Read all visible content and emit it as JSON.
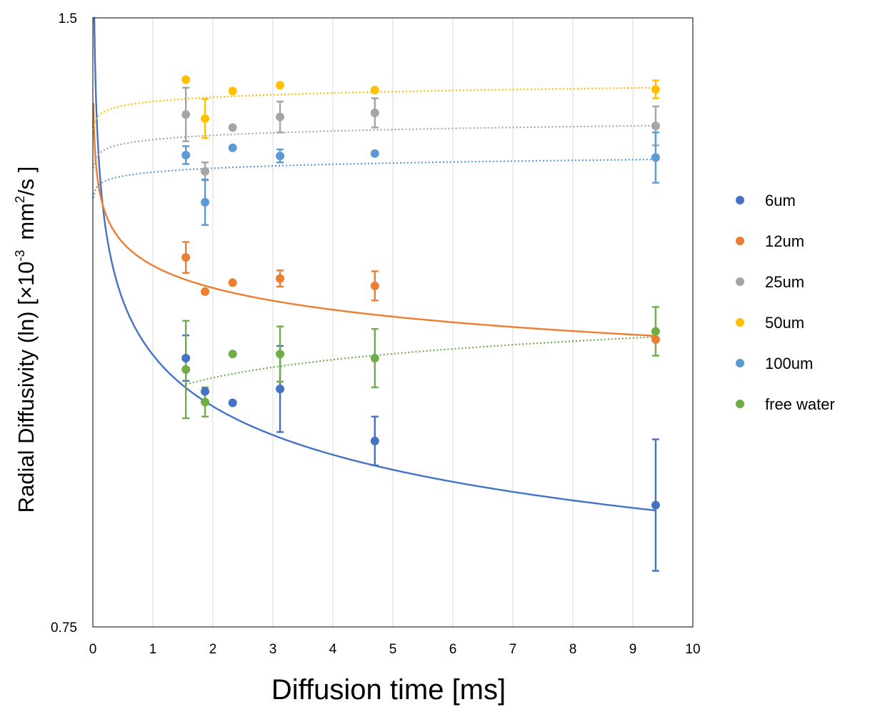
{
  "chart_data": {
    "type": "scatter",
    "xlabel": "Diffusion time [ms]",
    "ylabel_main": "Radial Diffusivity (ln) [×10",
    "ylabel_exp1": "-3",
    "ylabel_unit": "mm",
    "ylabel_exp2": "2",
    "ylabel_tail": "/s ]",
    "xlim": [
      0,
      10
    ],
    "ylim": [
      0.75,
      1.5
    ],
    "xticks": [
      "0",
      "1",
      "2",
      "3",
      "4",
      "5",
      "6",
      "7",
      "8",
      "9",
      "10"
    ],
    "yticks": [
      {
        "value": 1.5,
        "label": "1.5"
      },
      {
        "value": 0.75,
        "label": "0.75"
      }
    ],
    "grid": "vertical",
    "legend_position": "right",
    "series": [
      {
        "name": "6um",
        "color": "#4472C4",
        "points": [
          {
            "x": 1.55,
            "y": 1.081,
            "err": 0.028
          },
          {
            "x": 1.87,
            "y": 1.04,
            "err": 0
          },
          {
            "x": 2.33,
            "y": 1.026,
            "err": 0
          },
          {
            "x": 3.12,
            "y": 1.043,
            "err": 0.053
          },
          {
            "x": 4.7,
            "y": 0.979,
            "err": 0.03
          },
          {
            "x": 9.38,
            "y": 0.9,
            "err": 0.081
          }
        ],
        "fit": {
          "type": "power",
          "a": 1.085,
          "b": -0.0868,
          "style": "solid"
        }
      },
      {
        "name": "12um",
        "color": "#ED7D31",
        "points": [
          {
            "x": 1.55,
            "y": 1.205,
            "err": 0.019
          },
          {
            "x": 1.87,
            "y": 1.163,
            "err": 0
          },
          {
            "x": 2.33,
            "y": 1.174,
            "err": 0
          },
          {
            "x": 3.12,
            "y": 1.179,
            "err": 0.01
          },
          {
            "x": 4.7,
            "y": 1.17,
            "err": 0.018
          },
          {
            "x": 9.38,
            "y": 1.104,
            "err": 0
          }
        ],
        "fit": {
          "type": "power",
          "a": 1.195,
          "b": -0.0336,
          "style": "solid"
        }
      },
      {
        "name": "25um",
        "color": "#A5A5A5",
        "points": [
          {
            "x": 1.55,
            "y": 1.381,
            "err": 0.033
          },
          {
            "x": 1.87,
            "y": 1.311,
            "err": 0.011
          },
          {
            "x": 2.33,
            "y": 1.365,
            "err": 0
          },
          {
            "x": 3.12,
            "y": 1.378,
            "err": 0.019
          },
          {
            "x": 4.7,
            "y": 1.383,
            "err": 0.018
          },
          {
            "x": 9.38,
            "y": 1.367,
            "err": 0.024
          }
        ],
        "fit": {
          "type": "power",
          "a": 1.35,
          "b": 0.0057,
          "style": "dotted"
        }
      },
      {
        "name": "50um",
        "color": "#FFC000",
        "points": [
          {
            "x": 1.55,
            "y": 1.424,
            "err": 0
          },
          {
            "x": 1.87,
            "y": 1.376,
            "err": 0.024
          },
          {
            "x": 2.33,
            "y": 1.41,
            "err": 0
          },
          {
            "x": 3.12,
            "y": 1.417,
            "err": 0
          },
          {
            "x": 4.7,
            "y": 1.411,
            "err": 0
          },
          {
            "x": 9.38,
            "y": 1.412,
            "err": 0.011
          }
        ],
        "fit": {
          "type": "power",
          "a": 1.397,
          "b": 0.0054,
          "style": "dotted"
        }
      },
      {
        "name": "100um",
        "color": "#5B9BD5",
        "points": [
          {
            "x": 1.55,
            "y": 1.331,
            "err": 0.011
          },
          {
            "x": 1.87,
            "y": 1.273,
            "err": 0.028
          },
          {
            "x": 2.33,
            "y": 1.34,
            "err": 0
          },
          {
            "x": 3.12,
            "y": 1.33,
            "err": 0.008
          },
          {
            "x": 4.7,
            "y": 1.333,
            "err": 0
          },
          {
            "x": 9.38,
            "y": 1.328,
            "err": 0.031
          }
        ],
        "fit": {
          "type": "power",
          "a": 1.31,
          "b": 0.0053,
          "style": "dotted"
        }
      },
      {
        "name": "free water",
        "color": "#70AD47",
        "points": [
          {
            "x": 1.55,
            "y": 1.067,
            "err": 0.06
          },
          {
            "x": 1.87,
            "y": 1.027,
            "err": 0.018
          },
          {
            "x": 2.33,
            "y": 1.086,
            "err": 0
          },
          {
            "x": 3.12,
            "y": 1.086,
            "err": 0.034
          },
          {
            "x": 4.7,
            "y": 1.081,
            "err": 0.036
          },
          {
            "x": 9.38,
            "y": 1.114,
            "err": 0.03
          }
        ],
        "fit": {
          "type": "power",
          "a": 1.035,
          "b": 0.0301,
          "xmin": 1.55,
          "style": "dotted"
        }
      }
    ]
  }
}
